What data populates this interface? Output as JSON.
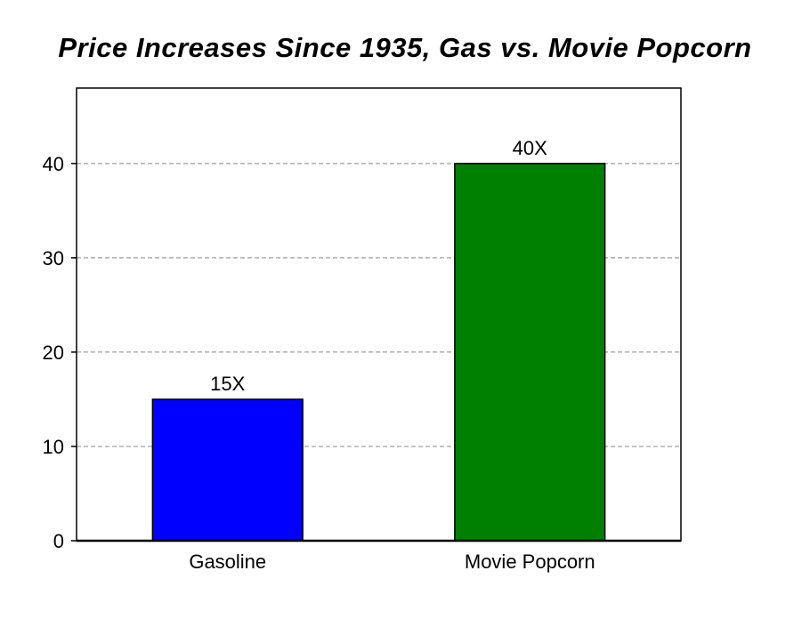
{
  "chart_data": {
    "type": "bar",
    "title": "Price Increases Since 1935, Gas vs. Movie Popcorn",
    "xlabel": "",
    "ylabel": "",
    "categories": [
      "Gasoline",
      "Movie Popcorn"
    ],
    "values": [
      15,
      40
    ],
    "data_labels": [
      "15X",
      "40X"
    ],
    "colors": [
      "#0000ff",
      "#008000"
    ],
    "ylim": [
      0,
      48
    ],
    "yticks": [
      0,
      10,
      20,
      30,
      40
    ],
    "grid": true,
    "legend": "none"
  }
}
